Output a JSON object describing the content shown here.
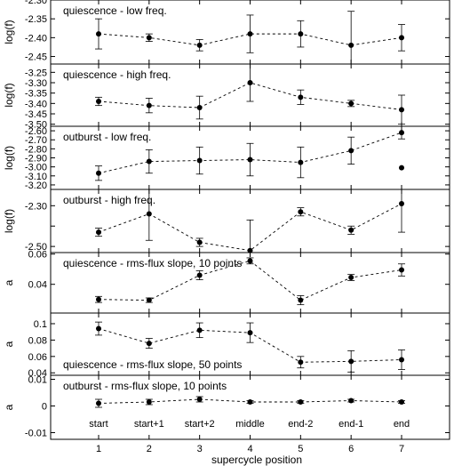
{
  "figure": {
    "xlabel": "supercycle position",
    "categories": [
      "start",
      "start+1",
      "start+2",
      "middle",
      "end-2",
      "end-1",
      "end"
    ],
    "xticks": [
      "1",
      "2",
      "3",
      "4",
      "5",
      "6",
      "7"
    ]
  },
  "chart_data": [
    {
      "type": "line",
      "title": "quiescence - low freq.",
      "ylabel": "log(f)",
      "ylim": [
        -2.47,
        -2.3
      ],
      "yticks": [
        -2.3,
        -2.35,
        -2.4,
        -2.45
      ],
      "ytick_labels": [
        "-2.30",
        "-2.35",
        "-2.40",
        "-2.45"
      ],
      "x": [
        1,
        2,
        3,
        4,
        5,
        6,
        7
      ],
      "series": [
        {
          "values": [
            -2.39,
            -2.4,
            -2.42,
            -2.39,
            -2.39,
            -2.42,
            -2.4
          ],
          "errors": [
            0.04,
            0.01,
            0.015,
            0.05,
            0.035,
            0.09,
            0.035
          ]
        }
      ],
      "label_position": "top-left"
    },
    {
      "type": "line",
      "title": "quiescence - high freq.",
      "ylabel": "log(f)",
      "ylim": [
        -3.51,
        -3.21
      ],
      "yticks": [
        -3.25,
        -3.3,
        -3.35,
        -3.4,
        -3.45,
        -3.5
      ],
      "ytick_labels": [
        "-3.25",
        "-3.30",
        "-3.35",
        "-3.40",
        "-3.45",
        "-3.50"
      ],
      "x": [
        1,
        2,
        3,
        4,
        5,
        6,
        7
      ],
      "series": [
        {
          "values": [
            -3.39,
            -3.41,
            -3.42,
            -3.3,
            -3.37,
            -3.4,
            -3.43
          ],
          "errors": [
            0.02,
            0.035,
            0.055,
            0.09,
            0.035,
            0.015,
            0.07
          ]
        }
      ],
      "label_position": "top-left"
    },
    {
      "type": "line",
      "title": "outburst - low freq.",
      "ylabel": "log(f)",
      "ylim": [
        -3.25,
        -2.55
      ],
      "yticks": [
        -2.6,
        -2.7,
        -2.8,
        -2.9,
        -3.0,
        -3.1,
        -3.2
      ],
      "ytick_labels": [
        "-2.60",
        "-2.70",
        "-2.80",
        "-2.90",
        "-3.00",
        "-3.10",
        "-3.20"
      ],
      "x": [
        1,
        2,
        3,
        4,
        5,
        6,
        7
      ],
      "series": [
        {
          "values": [
            -3.07,
            -2.94,
            -2.93,
            -2.92,
            -2.95,
            -2.82,
            -2.62
          ],
          "errors": [
            0.08,
            0.13,
            0.15,
            0.18,
            0.17,
            0.15,
            0.07
          ]
        }
      ],
      "extra_points": [
        {
          "x": 7,
          "y": -3.01
        }
      ],
      "label_position": "top-left"
    },
    {
      "type": "line",
      "title": "outburst - high freq.",
      "ylabel": "log(f)",
      "ylim": [
        -2.53,
        -2.22
      ],
      "yticks": [
        -2.3,
        -2.4,
        -2.5
      ],
      "ytick_labels": [
        "-2.30",
        "",
        "-2.50"
      ],
      "x": [
        1,
        2,
        3,
        4,
        5,
        6,
        7
      ],
      "series": [
        {
          "values": [
            -2.43,
            -2.34,
            -2.48,
            -2.52,
            -2.33,
            -2.42,
            -2.29
          ],
          "errors": [
            0.02,
            0.13,
            0.02,
            0.15,
            0.02,
            0.02,
            0.14
          ]
        }
      ],
      "label_position": "top-left"
    },
    {
      "type": "line",
      "title": "quiescence - rms-flux slope, 10 points",
      "ylabel": "a",
      "ylim": [
        0.021,
        0.061
      ],
      "yticks": [
        0.04,
        0.06
      ],
      "ytick_labels": [
        "0.04",
        "0.06"
      ],
      "x": [
        1,
        2,
        3,
        4,
        5,
        6,
        7
      ],
      "series": [
        {
          "values": [
            0.03,
            0.0295,
            0.046,
            0.0555,
            0.0295,
            0.0445,
            0.0495
          ],
          "errors": [
            0.002,
            0.0015,
            0.003,
            0.002,
            0.003,
            0.002,
            0.004
          ]
        }
      ],
      "label_position": "top-left"
    },
    {
      "type": "line",
      "title": "quiescence - rms-flux slope, 50 points",
      "ylabel": "a",
      "ylim": [
        0.037,
        0.113
      ],
      "yticks": [
        0.04,
        0.06,
        0.08,
        0.1
      ],
      "ytick_labels": [
        "0.04",
        "0.06",
        "0.08",
        "0.1"
      ],
      "x": [
        1,
        2,
        3,
        4,
        5,
        6,
        7
      ],
      "series": [
        {
          "values": [
            0.094,
            0.076,
            0.092,
            0.089,
            0.053,
            0.054,
            0.056
          ],
          "errors": [
            0.008,
            0.006,
            0.009,
            0.012,
            0.007,
            0.013,
            0.012
          ]
        }
      ],
      "label_position": "bottom-left"
    },
    {
      "type": "line",
      "title": "outburst - rms-flux slope, 10 points",
      "ylabel": "a",
      "ylim": [
        -0.0125,
        0.0115
      ],
      "yticks": [
        0.01,
        0,
        -0.01
      ],
      "ytick_labels": [
        "0.01",
        "0",
        "-0.01"
      ],
      "x": [
        1,
        2,
        3,
        4,
        5,
        6,
        7
      ],
      "series": [
        {
          "values": [
            0.001,
            0.0015,
            0.0025,
            0.0015,
            0.0015,
            0.002,
            0.0015
          ],
          "errors": [
            0.0015,
            0.001,
            0.001,
            0.0005,
            0.0005,
            0.0005,
            0.0005
          ]
        }
      ],
      "label_position": "top-left"
    }
  ]
}
